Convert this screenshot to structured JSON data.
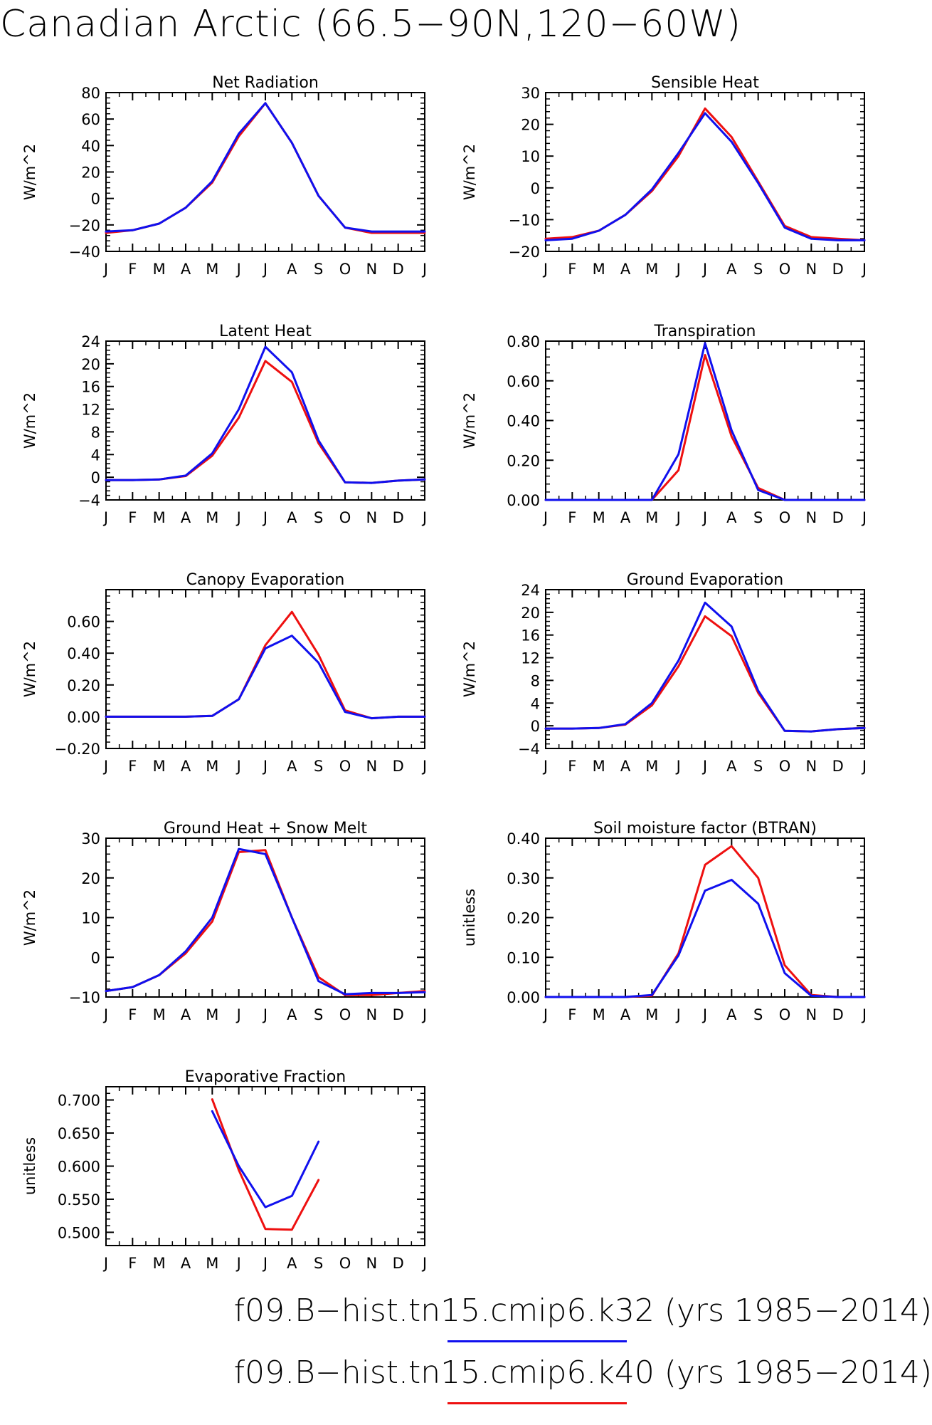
{
  "title": "Canadian Arctic (66.5−90N,120−60W)",
  "legend": [
    {
      "label": "f09.B−hist.tn15.cmip6.k32 (yrs 1985−2014)",
      "color": "#1010ee"
    },
    {
      "label": "f09.B−hist.tn15.cmip6.k40 (yrs 1985−2014)",
      "color": "#ee1010"
    }
  ],
  "months": [
    "J",
    "F",
    "M",
    "A",
    "M",
    "J",
    "J",
    "A",
    "S",
    "O",
    "N",
    "D",
    "J"
  ],
  "chart_data": [
    {
      "type": "line",
      "title": "Net Radiation",
      "ylabel": "W/m^2",
      "ylim": [
        -40,
        80
      ],
      "yticks": [
        -40,
        -20,
        0,
        20,
        40,
        60,
        80
      ],
      "ytick_labels": [
        "−40",
        "−20",
        "0",
        "20",
        "40",
        "60",
        "80"
      ],
      "series": [
        {
          "color": "#ee1010",
          "values": [
            -26,
            -24,
            -19,
            -7,
            12,
            47,
            72,
            42,
            2,
            -22,
            -26,
            -26,
            -26
          ]
        },
        {
          "color": "#1010ee",
          "values": [
            -25,
            -24,
            -19,
            -7,
            13,
            49,
            72,
            42,
            2,
            -22,
            -25,
            -25,
            -25
          ]
        }
      ]
    },
    {
      "type": "line",
      "title": "Sensible Heat",
      "ylabel": "W/m^2",
      "ylim": [
        -20,
        30
      ],
      "yticks": [
        -20,
        -10,
        0,
        10,
        20,
        30
      ],
      "ytick_labels": [
        "−20",
        "−10",
        "0",
        "10",
        "20",
        "30"
      ],
      "series": [
        {
          "color": "#ee1010",
          "values": [
            -16,
            -15.5,
            -13.5,
            -8.5,
            -1,
            10,
            25,
            16,
            2,
            -12,
            -15.5,
            -16,
            -16.5
          ]
        },
        {
          "color": "#1010ee",
          "values": [
            -16.5,
            -16,
            -13.5,
            -8.5,
            -0.5,
            11,
            23.5,
            14.5,
            1.5,
            -12.5,
            -16,
            -16.5,
            -16.5
          ]
        }
      ]
    },
    {
      "type": "line",
      "title": "Latent Heat",
      "ylabel": "W/m^2",
      "ylim": [
        -4,
        24
      ],
      "yticks": [
        -4,
        0,
        4,
        8,
        12,
        16,
        20,
        24
      ],
      "ytick_labels": [
        "−4",
        "0",
        "4",
        "8",
        "12",
        "16",
        "20",
        "24"
      ],
      "series": [
        {
          "color": "#ee1010",
          "values": [
            -0.5,
            -0.5,
            -0.4,
            0.2,
            3.8,
            10.5,
            20.5,
            16.8,
            6,
            -0.9,
            -1,
            -0.6,
            -0.4
          ]
        },
        {
          "color": "#1010ee",
          "values": [
            -0.5,
            -0.5,
            -0.4,
            0.3,
            4.2,
            12,
            23,
            18.5,
            6.5,
            -0.9,
            -1,
            -0.6,
            -0.4
          ]
        }
      ]
    },
    {
      "type": "line",
      "title": "Transpiration",
      "ylabel": "W/m^2",
      "ylim": [
        0,
        0.8
      ],
      "yticks": [
        0,
        0.2,
        0.4,
        0.6,
        0.8
      ],
      "ytick_labels": [
        "0.00",
        "0.20",
        "0.40",
        "0.60",
        "0.80"
      ],
      "series": [
        {
          "color": "#ee1010",
          "values": [
            0,
            0,
            0,
            0,
            0,
            0.15,
            0.73,
            0.32,
            0.06,
            0,
            0,
            0,
            0
          ]
        },
        {
          "color": "#1010ee",
          "values": [
            0,
            0,
            0,
            0,
            0,
            0.23,
            0.79,
            0.35,
            0.05,
            0,
            0,
            0,
            0
          ]
        }
      ]
    },
    {
      "type": "line",
      "title": "Canopy Evaporation",
      "ylabel": "W/m^2",
      "ylim": [
        -0.2,
        0.8
      ],
      "yticks": [
        -0.2,
        0,
        0.2,
        0.4,
        0.6
      ],
      "ytick_labels": [
        "−0.20",
        "0.00",
        "0.20",
        "0.40",
        "0.60"
      ],
      "series": [
        {
          "color": "#ee1010",
          "values": [
            0,
            0,
            0,
            0,
            0.005,
            0.11,
            0.45,
            0.66,
            0.39,
            0.04,
            -0.01,
            0,
            0
          ]
        },
        {
          "color": "#1010ee",
          "values": [
            0,
            0,
            0,
            0,
            0.005,
            0.11,
            0.43,
            0.51,
            0.34,
            0.03,
            -0.01,
            0,
            0
          ]
        }
      ]
    },
    {
      "type": "line",
      "title": "Ground Evaporation",
      "ylabel": "W/m^2",
      "ylim": [
        -4,
        24
      ],
      "yticks": [
        -4,
        0,
        4,
        8,
        12,
        16,
        20,
        24
      ],
      "ytick_labels": [
        "−4",
        "0",
        "4",
        "8",
        "12",
        "16",
        "20",
        "24"
      ],
      "series": [
        {
          "color": "#ee1010",
          "values": [
            -0.5,
            -0.5,
            -0.4,
            0.2,
            3.6,
            10.5,
            19.3,
            15.8,
            5.8,
            -0.9,
            -1,
            -0.6,
            -0.4
          ]
        },
        {
          "color": "#1010ee",
          "values": [
            -0.5,
            -0.5,
            -0.4,
            0.3,
            4,
            11.5,
            21.7,
            17.5,
            6.2,
            -0.9,
            -1,
            -0.6,
            -0.4
          ]
        }
      ]
    },
    {
      "type": "line",
      "title": "Ground Heat + Snow Melt",
      "ylabel": "W/m^2",
      "ylim": [
        -10,
        30
      ],
      "yticks": [
        -10,
        0,
        10,
        20,
        30
      ],
      "ytick_labels": [
        "−10",
        "0",
        "10",
        "20",
        "30"
      ],
      "series": [
        {
          "color": "#ee1010",
          "values": [
            -8.5,
            -7.5,
            -4.5,
            1,
            9,
            26.5,
            27,
            10,
            -5,
            -9.5,
            -9.5,
            -9,
            -8.5
          ]
        },
        {
          "color": "#1010ee",
          "values": [
            -8.5,
            -7.5,
            -4.5,
            1.5,
            10,
            27.3,
            26,
            10,
            -6,
            -9.3,
            -9,
            -9,
            -8.8
          ]
        }
      ]
    },
    {
      "type": "line",
      "title": "Soil moisture factor (BTRAN)",
      "ylabel": "unitless",
      "ylim": [
        0,
        0.4
      ],
      "yticks": [
        0,
        0.1,
        0.2,
        0.3,
        0.4
      ],
      "ytick_labels": [
        "0.00",
        "0.10",
        "0.20",
        "0.30",
        "0.40"
      ],
      "series": [
        {
          "color": "#ee1010",
          "values": [
            0,
            0,
            0,
            0,
            0.003,
            0.11,
            0.333,
            0.38,
            0.3,
            0.08,
            0.005,
            0,
            0
          ]
        },
        {
          "color": "#1010ee",
          "values": [
            0,
            0,
            0,
            0,
            0.005,
            0.105,
            0.268,
            0.295,
            0.235,
            0.06,
            0.003,
            0,
            0
          ]
        }
      ]
    },
    {
      "type": "line",
      "title": "Evaporative Fraction",
      "ylabel": "unitless",
      "ylim": [
        0.48,
        0.72
      ],
      "yticks": [
        0.5,
        0.55,
        0.6,
        0.65,
        0.7
      ],
      "ytick_labels": [
        "0.500",
        "0.550",
        "0.600",
        "0.650",
        "0.700"
      ],
      "series": [
        {
          "color": "#ee1010",
          "values": [
            null,
            null,
            null,
            null,
            0.701,
            0.594,
            0.505,
            0.504,
            0.579,
            null,
            null,
            null,
            null
          ]
        },
        {
          "color": "#1010ee",
          "values": [
            null,
            null,
            null,
            null,
            0.683,
            0.6,
            0.538,
            0.555,
            0.637,
            null,
            null,
            null,
            null
          ]
        }
      ]
    }
  ]
}
